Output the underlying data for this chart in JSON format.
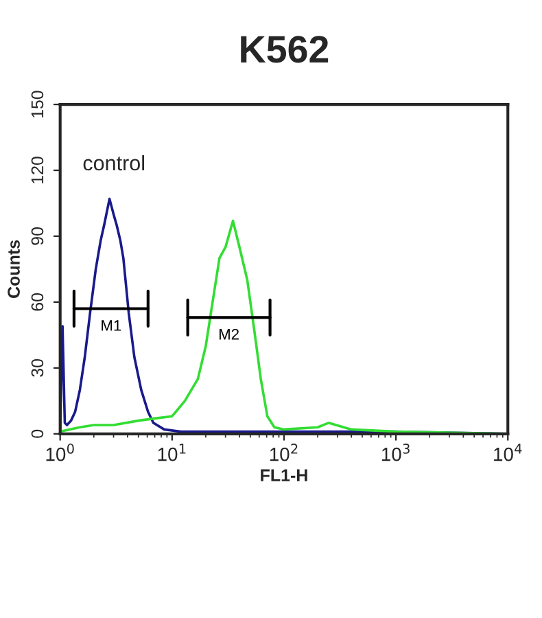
{
  "chart_data": {
    "type": "line",
    "title": "K562",
    "xlabel": "FL1-H",
    "ylabel": "Counts",
    "log": "x",
    "xlim": [
      1,
      10000
    ],
    "ylim": [
      0,
      150
    ],
    "xticks": [
      {
        "value": 1,
        "label": "10$^{0}$"
      },
      {
        "value": 10,
        "label": "10$^{1}$"
      },
      {
        "value": 100,
        "label": "10$^{2}$"
      },
      {
        "value": 1000,
        "label": "10$^{3}$"
      },
      {
        "value": 10000,
        "label": "10$^{4}$"
      }
    ],
    "yticks": [
      0,
      30,
      60,
      90,
      120,
      150
    ],
    "grid": false,
    "annotations": [
      "control"
    ],
    "series": [
      {
        "color": "#1a1a8c",
        "x": [
          1,
          1.05,
          1.1,
          1.15,
          1.25,
          1.36,
          1.5,
          1.66,
          1.85,
          2.08,
          2.3,
          2.47,
          2.76,
          3.0,
          3.2,
          3.45,
          3.67,
          4.1,
          4.6,
          5.3,
          6.1,
          6.8,
          8.5,
          12,
          30,
          100,
          300,
          1000,
          10000
        ],
        "values": [
          2,
          49,
          5,
          4,
          6,
          10,
          20,
          35,
          55,
          75,
          88,
          95,
          107,
          100,
          95,
          88,
          80,
          55,
          35,
          20,
          10,
          5,
          2,
          1,
          1,
          1,
          1,
          1,
          0
        ]
      },
      {
        "color": "#33dd33",
        "x": [
          1,
          1.5,
          2,
          3,
          5,
          7,
          10,
          13,
          17,
          20,
          23,
          26.5,
          30,
          32,
          35,
          40,
          47,
          55,
          62,
          71,
          82,
          100,
          200,
          250,
          400,
          1000,
          10000
        ],
        "values": [
          1,
          3,
          4,
          4,
          6,
          7,
          8,
          15,
          25,
          40,
          60,
          80,
          85,
          90,
          97,
          85,
          70,
          45,
          25,
          8,
          3,
          2,
          3,
          5,
          2,
          1,
          0
        ]
      },
      {
        "type": "line",
        "name": "M1",
        "color": "#000000",
        "x": [
          1.33,
          6.1
        ],
        "values": [
          57,
          57
        ]
      },
      {
        "type": "line",
        "name": "M2",
        "color": "#000000",
        "x": [
          13.8,
          75
        ],
        "values": [
          53,
          53
        ]
      }
    ]
  }
}
